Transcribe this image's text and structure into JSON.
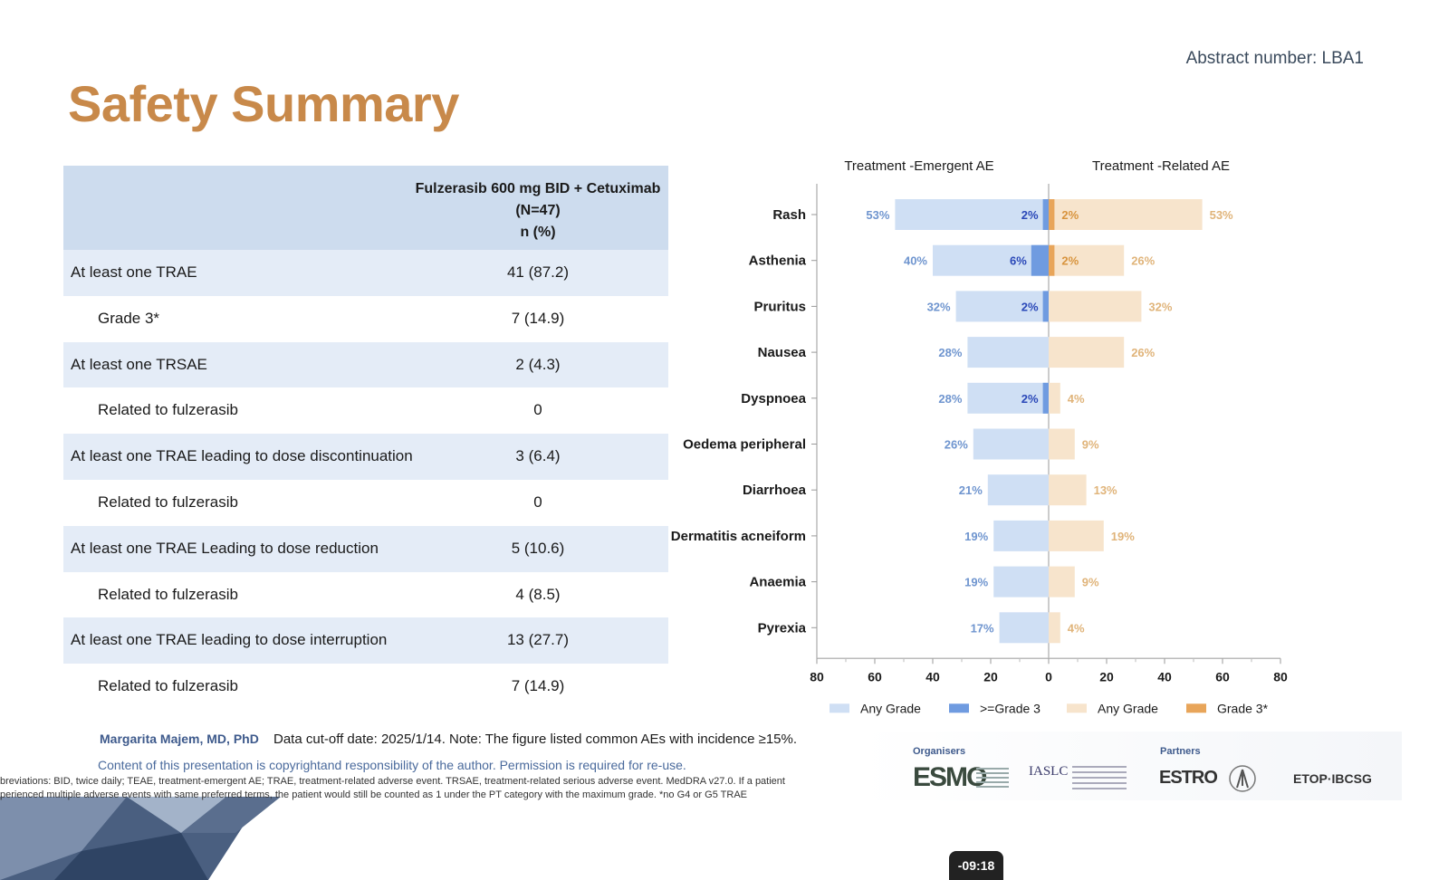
{
  "header": {
    "abstract_number": "Abstract number: LBA1",
    "title": "Safety Summary"
  },
  "table": {
    "column_header_lines": [
      "Fulzerasib 600 mg BID + Cetuximab",
      "(N=47)",
      "n (%)"
    ],
    "rows": [
      {
        "label": "At least one TRAE",
        "value": "41 (87.2)"
      },
      {
        "label": "Grade 3*",
        "value": "7 (14.9)"
      },
      {
        "label": "At least one TRSAE",
        "value": "2 (4.3)"
      },
      {
        "label": "Related to fulzerasib",
        "value": "0"
      },
      {
        "label": "At least one TRAE leading to dose discontinuation",
        "value": "3 (6.4)"
      },
      {
        "label": "Related to fulzerasib",
        "value": "0"
      },
      {
        "label": "At least one TRAE Leading to dose reduction",
        "value": "5 (10.6)"
      },
      {
        "label": "Related to fulzerasib",
        "value": "4 (8.5)"
      },
      {
        "label": "At least one TRAE leading to dose interruption",
        "value": "13 (27.7)"
      },
      {
        "label": "Related to fulzerasib",
        "value": "7 (14.9)"
      }
    ]
  },
  "chart_data": {
    "type": "bar",
    "orientation": "horizontal-butterfly",
    "left_title": "Treatment -Emergent AE",
    "right_title": "Treatment -Related AE",
    "categories": [
      "Rash",
      "Asthenia",
      "Pruritus",
      "Nausea",
      "Dyspnoea",
      "Oedema peripheral",
      "Diarrhoea",
      "Dermatitis acneiform",
      "Anaemia",
      "Pyrexia"
    ],
    "xlim": [
      -80,
      80
    ],
    "xticks": [
      "80",
      "60",
      "40",
      "20",
      "0",
      "20",
      "40",
      "60",
      "80"
    ],
    "series": [
      {
        "name": "Any Grade",
        "side": "left",
        "color": "#cfdff4",
        "label_color": "#6f95cf",
        "values": [
          53,
          40,
          32,
          28,
          28,
          26,
          21,
          19,
          19,
          17
        ],
        "labels": [
          "53%",
          "40%",
          "32%",
          "28%",
          "28%",
          "26%",
          "21%",
          "19%",
          "19%",
          "17%"
        ]
      },
      {
        "name": ">=Grade 3",
        "side": "left",
        "color": "#6f9be0",
        "label_color": "#2a48b8",
        "values": [
          2,
          6,
          2,
          0,
          2,
          0,
          0,
          0,
          0,
          0
        ],
        "labels": [
          "2%",
          "6%",
          "2%",
          "",
          "2%",
          "",
          "",
          "",
          "",
          ""
        ]
      },
      {
        "name": "Any Grade",
        "side": "right",
        "color": "#f7e4cc",
        "label_color": "#e0b47a",
        "values": [
          53,
          26,
          32,
          26,
          4,
          9,
          13,
          19,
          9,
          4
        ],
        "labels": [
          "53%",
          "26%",
          "32%",
          "26%",
          "4%",
          "9%",
          "13%",
          "19%",
          "9%",
          "4%"
        ]
      },
      {
        "name": "Grade 3*",
        "side": "right",
        "color": "#e8a55a",
        "label_color": "#d8943e",
        "values": [
          2,
          2,
          0,
          0,
          0,
          0,
          0,
          0,
          0,
          0
        ],
        "labels": [
          "2%",
          "2%",
          "",
          "",
          "",
          "",
          "",
          "",
          "",
          ""
        ]
      }
    ],
    "legend_position": "bottom",
    "grid": false
  },
  "footer": {
    "author": "Margarita Majem, MD, PhD",
    "cutoff": "Data cut-off date: 2025/1/14. Note: The figure listed common AEs with incidence ≥15%.",
    "copyright": "Content of this presentation is copyrightand responsibility of the author. Permission is required for re-use.",
    "abbrev_line1": "breviations: BID, twice daily; TEAE, treatment-emergent AE; TRAE, treatment-related adverse event. TRSAE, treatment-related serious adverse event. MedDRA v27.0. If a patient",
    "abbrev_line2": "perienced multiple adverse events with same preferred terms, the patient would still be counted as 1 under the PT category with the maximum grade. *no G4 or G5 TRAE"
  },
  "logos": {
    "organisers_label": "Organisers",
    "partners_label": "Partners",
    "esmo": "ESMO",
    "iaslc": "IASLC",
    "estro": "ESTRO",
    "etop": "ETOP·IBCSG"
  },
  "video": {
    "time": "-09:18"
  }
}
